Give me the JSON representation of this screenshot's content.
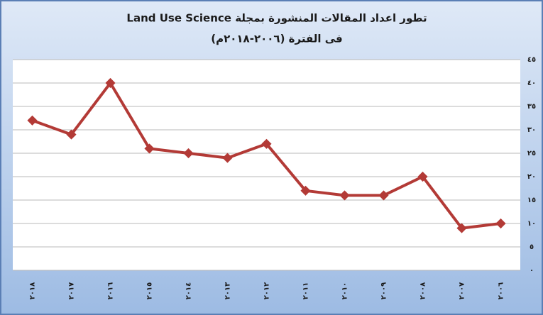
{
  "chart_data": {
    "type": "line",
    "title": "تطور اعداد المقالات المنشورة بمجلة Land Use Science",
    "subtitle": "فى الفترة (٢٠٠٦-٢٠١٨م)",
    "categories": [
      "٢٠١٨",
      "٢٠١٧",
      "٢٠١٦",
      "٢٠١٥",
      "٢٠١٤",
      "٢٠١٣",
      "٢٠١٢",
      "٢٠١١",
      "٢٠١٠",
      "٢٠٠٩",
      "٢٠٠٨",
      "٢٠٠٧",
      "٢٠٠٦"
    ],
    "series": [
      {
        "color": "#b33a36",
        "values": [
          32,
          29,
          40,
          26,
          25,
          24,
          27,
          17,
          16,
          16,
          20,
          9,
          10
        ]
      }
    ],
    "ylim": [
      0,
      45
    ],
    "yticks": [
      {
        "value": 0,
        "label": "٠"
      },
      {
        "value": 5,
        "label": "٥"
      },
      {
        "value": 10,
        "label": "١٠"
      },
      {
        "value": 15,
        "label": "١٥"
      },
      {
        "value": 20,
        "label": "٢٠"
      },
      {
        "value": 25,
        "label": "٢٥"
      },
      {
        "value": 30,
        "label": "٣٠"
      },
      {
        "value": 35,
        "label": "٣٥"
      },
      {
        "value": 40,
        "label": "٤٠"
      },
      {
        "value": 45,
        "label": "٤٥"
      }
    ],
    "grid": true,
    "y_axis_side": "right"
  }
}
